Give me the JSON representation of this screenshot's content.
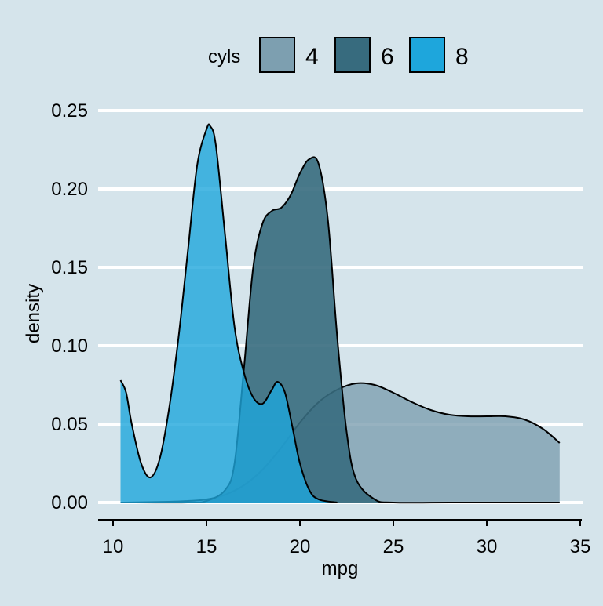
{
  "chart_data": {
    "type": "area",
    "title": "",
    "xlabel": "mpg",
    "ylabel": "density",
    "xlim": [
      10,
      35
    ],
    "ylim": [
      0,
      0.25
    ],
    "x_ticks": [
      "10",
      "15",
      "20",
      "25",
      "30",
      "35"
    ],
    "y_ticks": [
      "0.00",
      "0.05",
      "0.10",
      "0.15",
      "0.20",
      "0.25"
    ],
    "grid": "horizontal",
    "legend": {
      "title": "cyls",
      "placement": "top",
      "items": [
        {
          "label": "4",
          "color": "#7d9fb0"
        },
        {
          "label": "6",
          "color": "#376b7e"
        },
        {
          "label": "8",
          "color": "#1ea6dc"
        }
      ]
    },
    "series": [
      {
        "name": "4",
        "color": "#7d9fb0",
        "opacity": 0.8,
        "x": [
          10.4,
          13,
          14,
          15,
          16,
          17,
          18,
          19,
          20,
          21,
          22,
          23,
          24,
          25,
          26,
          27,
          28,
          29,
          30,
          31,
          32,
          33,
          33.9
        ],
        "y": [
          0.0,
          0.0005,
          0.001,
          0.002,
          0.005,
          0.011,
          0.021,
          0.035,
          0.051,
          0.064,
          0.072,
          0.076,
          0.075,
          0.07,
          0.064,
          0.059,
          0.056,
          0.055,
          0.055,
          0.055,
          0.053,
          0.047,
          0.038
        ]
      },
      {
        "name": "6",
        "color": "#376b7e",
        "opacity": 0.9,
        "x": [
          10.4,
          14,
          15,
          16,
          16.5,
          17,
          17.5,
          18,
          18.5,
          19,
          19.5,
          20,
          20.5,
          21,
          21.5,
          22,
          22.5,
          23,
          24,
          25,
          28,
          33.9
        ],
        "y": [
          0.0,
          0.0,
          0.001,
          0.008,
          0.025,
          0.085,
          0.15,
          0.178,
          0.186,
          0.188,
          0.196,
          0.21,
          0.219,
          0.216,
          0.18,
          0.105,
          0.045,
          0.015,
          0.002,
          0.0,
          0.0,
          0.0
        ]
      },
      {
        "name": "8",
        "color": "#1ea6dc",
        "opacity": 0.8,
        "x": [
          10.4,
          10.7,
          11,
          11.5,
          12,
          12.5,
          13,
          13.5,
          14,
          14.5,
          15,
          15.2,
          15.5,
          16,
          16.5,
          17,
          17.5,
          18,
          18.5,
          18.8,
          19.2,
          19.6,
          20,
          20.5,
          21,
          22
        ],
        "y": [
          0.078,
          0.07,
          0.05,
          0.025,
          0.016,
          0.028,
          0.06,
          0.105,
          0.16,
          0.215,
          0.238,
          0.24,
          0.228,
          0.17,
          0.112,
          0.083,
          0.067,
          0.063,
          0.072,
          0.077,
          0.07,
          0.048,
          0.025,
          0.008,
          0.002,
          0.0
        ]
      }
    ]
  }
}
